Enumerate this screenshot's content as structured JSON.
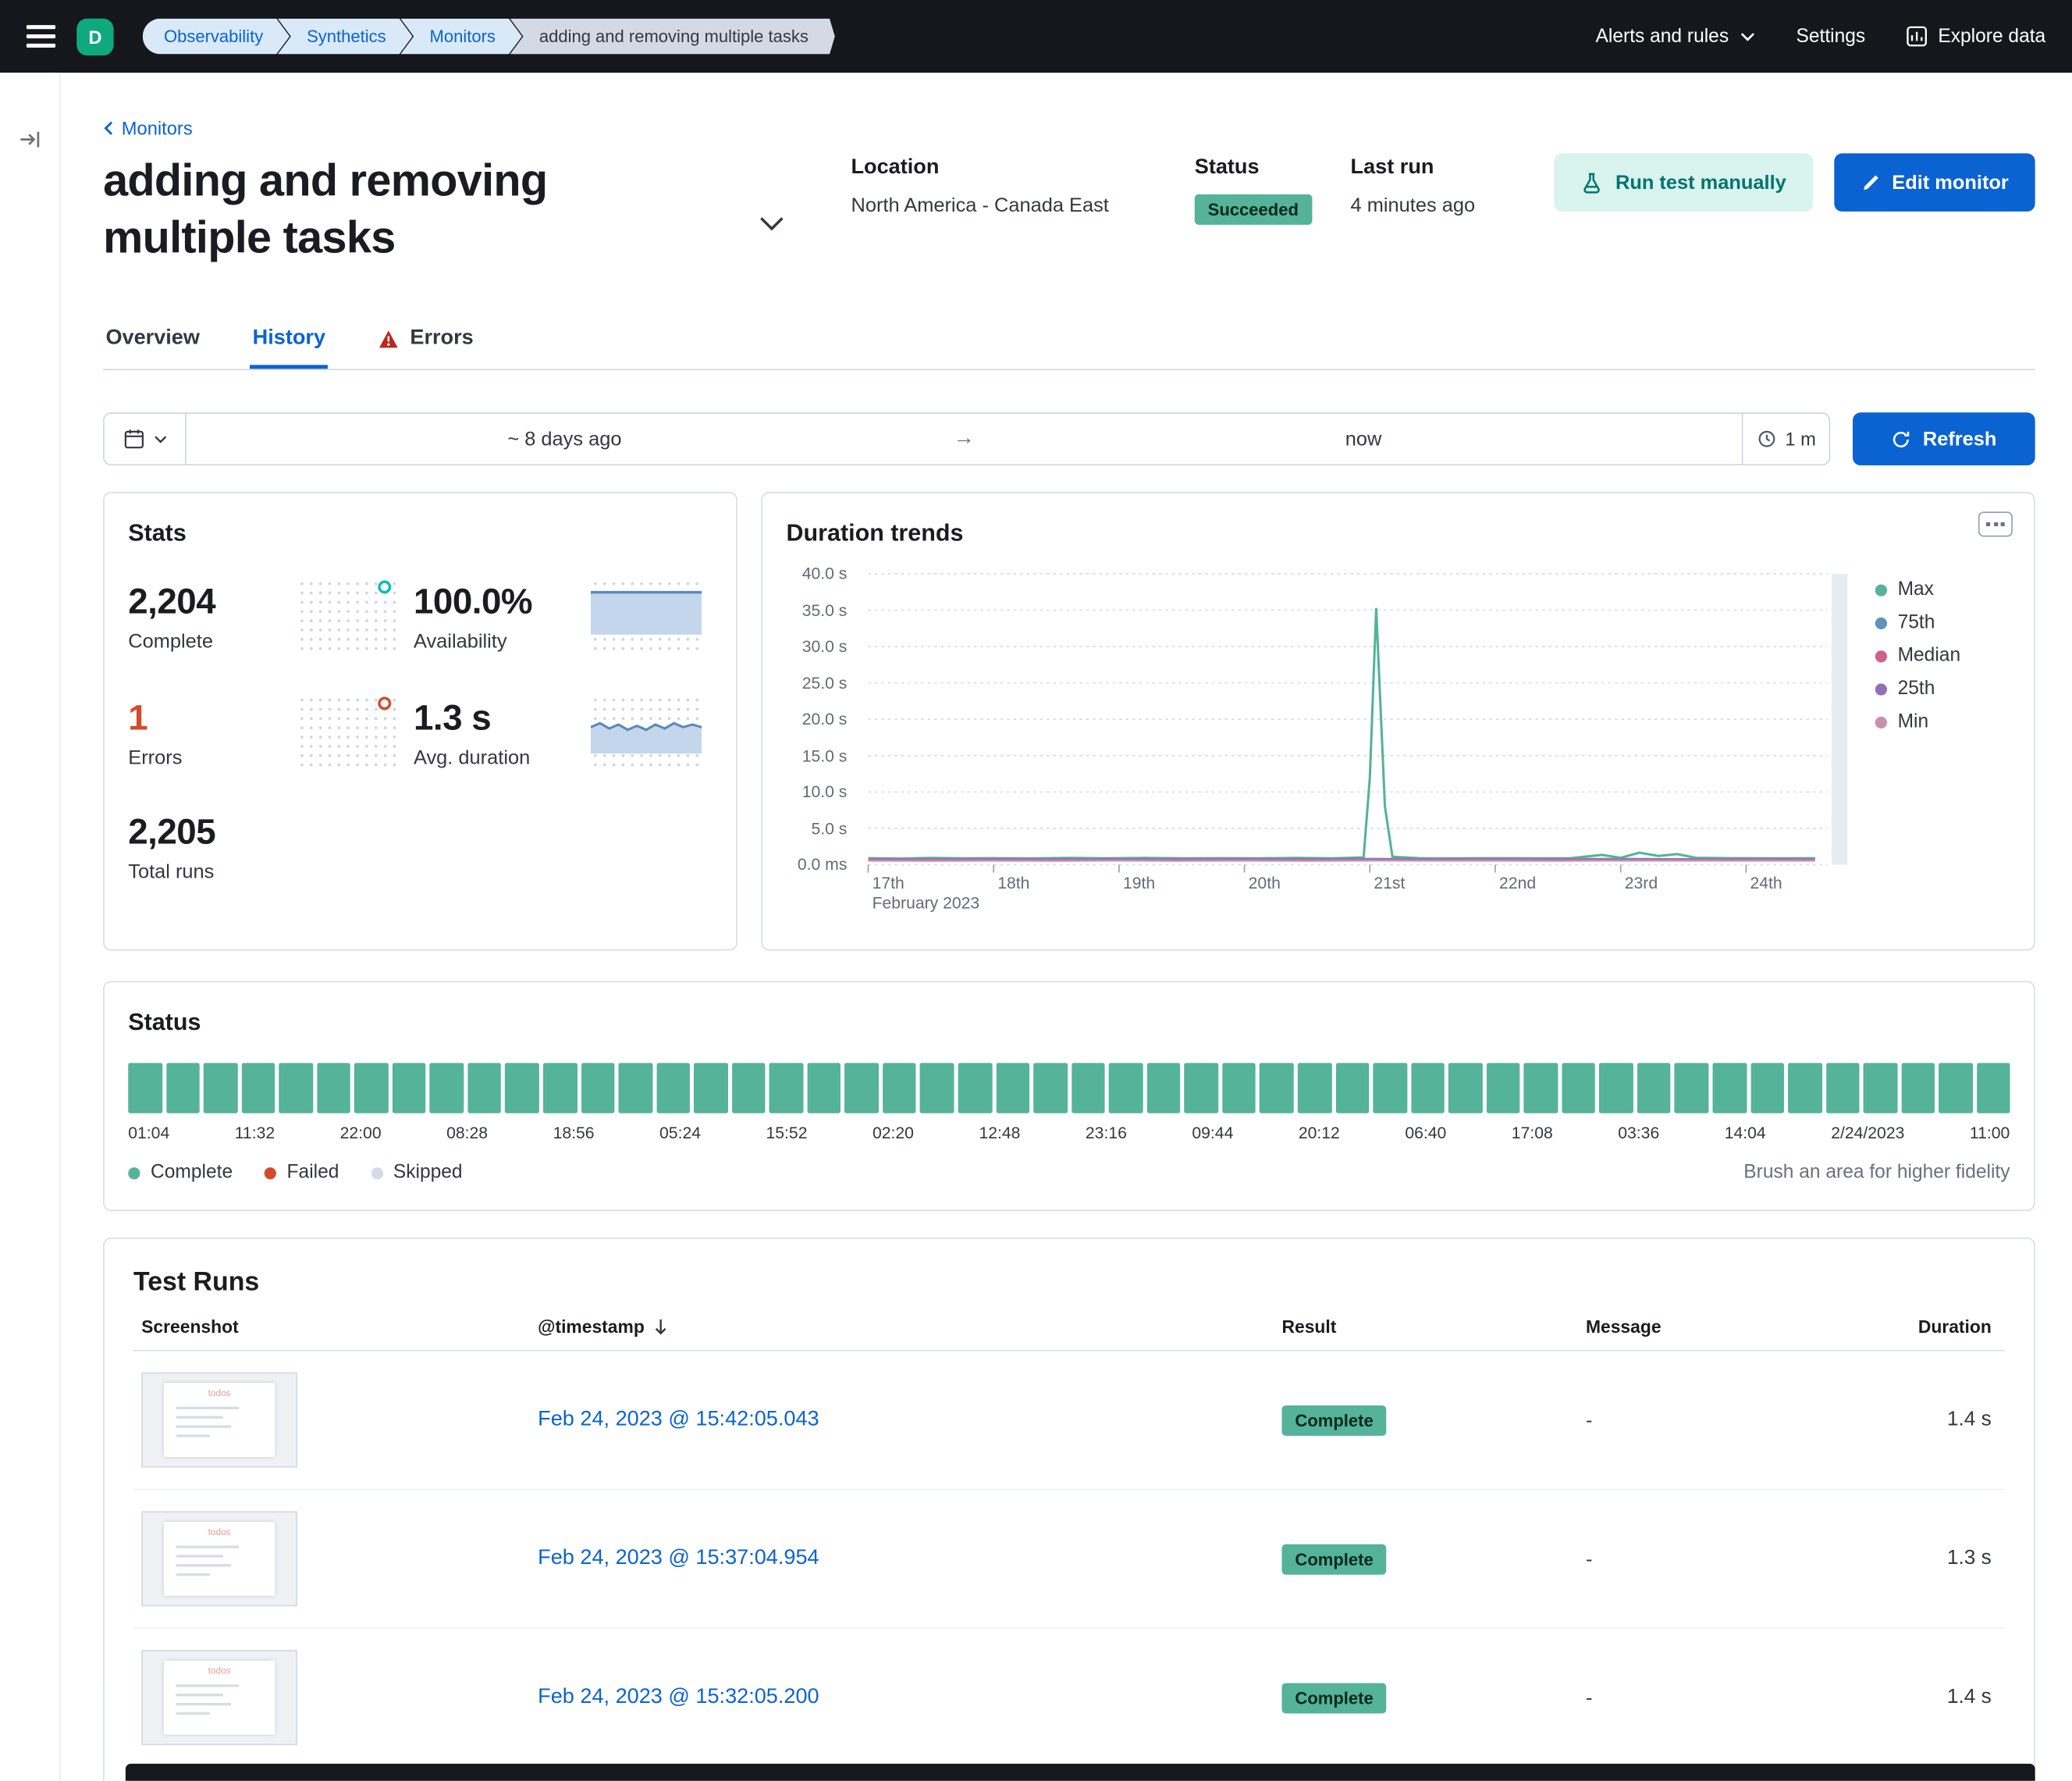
{
  "colors": {
    "accent": "#0B63D1",
    "success": "#54B399",
    "danger": "#D6492C",
    "teal": "#00BFB3"
  },
  "header": {
    "avatar": "D",
    "breadcrumbs": [
      {
        "label": "Observability"
      },
      {
        "label": "Synthetics"
      },
      {
        "label": "Monitors"
      },
      {
        "label": "adding and removing multiple tasks"
      }
    ],
    "nav": {
      "alerts": "Alerts and rules",
      "settings": "Settings",
      "explore": "Explore data"
    }
  },
  "monitor": {
    "back_link": "Monitors",
    "title": "adding and removing multiple tasks",
    "location_label": "Location",
    "location": "North America - Canada East",
    "status_label": "Status",
    "status": "Succeeded",
    "last_run_label": "Last run",
    "last_run": "4 minutes ago",
    "run_test_button": "Run test manually",
    "edit_button": "Edit monitor"
  },
  "tabs": [
    {
      "label": "Overview",
      "active": false
    },
    {
      "label": "History",
      "active": true
    },
    {
      "label": "Errors",
      "active": false,
      "icon": "warning"
    }
  ],
  "datepicker": {
    "start": "~ 8 days ago",
    "end": "now",
    "interval": "1 m",
    "refresh": "Refresh"
  },
  "stats": {
    "title": "Stats",
    "items": [
      {
        "value": "2,204",
        "label": "Complete"
      },
      {
        "value": "100.0%",
        "label": "Availability"
      },
      {
        "value": "1",
        "label": "Errors",
        "color": "#D6492C"
      },
      {
        "value": "1.3 s",
        "label": "Avg. duration"
      },
      {
        "value": "2,205",
        "label": "Total runs"
      }
    ]
  },
  "chart_data": {
    "type": "line",
    "title": "Duration trends",
    "y_ticks": [
      "40.0 s",
      "35.0 s",
      "30.0 s",
      "25.0 s",
      "20.0 s",
      "15.0 s",
      "10.0 s",
      "5.0 s",
      "0.0 ms"
    ],
    "ylim_seconds": [
      0,
      40
    ],
    "x_ticks": [
      "17th",
      "18th",
      "19th",
      "20th",
      "21st",
      "22nd",
      "23rd",
      "24th"
    ],
    "x_axis_secondary": "February 2023",
    "x_domain_days": [
      17,
      24.65
    ],
    "grid": "dashed",
    "legend_position": "right",
    "series": [
      {
        "name": "Max",
        "color": "#54B399",
        "points": [
          [
            17,
            0.9
          ],
          [
            17.25,
            0.84
          ],
          [
            17.5,
            0.92
          ],
          [
            17.75,
            0.88
          ],
          [
            18,
            0.9
          ],
          [
            18.3,
            0.86
          ],
          [
            18.6,
            0.92
          ],
          [
            18.9,
            0.88
          ],
          [
            19.2,
            0.93
          ],
          [
            19.5,
            0.88
          ],
          [
            19.8,
            0.9
          ],
          [
            20.1,
            0.87
          ],
          [
            20.4,
            0.92
          ],
          [
            20.7,
            0.88
          ],
          [
            20.95,
            1.0
          ],
          [
            21.0,
            12
          ],
          [
            21.05,
            35.3
          ],
          [
            21.12,
            8
          ],
          [
            21.18,
            1.1
          ],
          [
            21.4,
            0.9
          ],
          [
            21.7,
            0.88
          ],
          [
            22,
            0.9
          ],
          [
            22.3,
            0.87
          ],
          [
            22.6,
            0.9
          ],
          [
            22.85,
            1.35
          ],
          [
            23,
            0.95
          ],
          [
            23.15,
            1.65
          ],
          [
            23.3,
            1.2
          ],
          [
            23.45,
            1.45
          ],
          [
            23.6,
            0.95
          ],
          [
            23.9,
            0.9
          ],
          [
            24.2,
            0.88
          ],
          [
            24.55,
            0.9
          ]
        ]
      },
      {
        "name": "75th",
        "color": "#6092C0",
        "points": [
          [
            17,
            0.8
          ],
          [
            17.5,
            0.77
          ],
          [
            18,
            0.8
          ],
          [
            18.5,
            0.78
          ],
          [
            19,
            0.81
          ],
          [
            19.5,
            0.78
          ],
          [
            20,
            0.8
          ],
          [
            20.5,
            0.78
          ],
          [
            21,
            0.82
          ],
          [
            21.5,
            0.79
          ],
          [
            22,
            0.8
          ],
          [
            22.5,
            0.78
          ],
          [
            23,
            0.82
          ],
          [
            23.5,
            0.79
          ],
          [
            24,
            0.8
          ],
          [
            24.55,
            0.79
          ]
        ]
      },
      {
        "name": "Median",
        "color": "#D36086",
        "points": [
          [
            17,
            0.72
          ],
          [
            17.5,
            0.7
          ],
          [
            18,
            0.72
          ],
          [
            18.5,
            0.7
          ],
          [
            19,
            0.73
          ],
          [
            19.5,
            0.7
          ],
          [
            20,
            0.72
          ],
          [
            20.5,
            0.7
          ],
          [
            21,
            0.73
          ],
          [
            21.5,
            0.71
          ],
          [
            22,
            0.72
          ],
          [
            22.5,
            0.7
          ],
          [
            23,
            0.73
          ],
          [
            23.5,
            0.71
          ],
          [
            24,
            0.72
          ],
          [
            24.55,
            0.71
          ]
        ]
      },
      {
        "name": "25th",
        "color": "#9170B8",
        "points": [
          [
            17,
            0.64
          ],
          [
            17.5,
            0.62
          ],
          [
            18,
            0.64
          ],
          [
            18.5,
            0.62
          ],
          [
            19,
            0.65
          ],
          [
            19.5,
            0.62
          ],
          [
            20,
            0.64
          ],
          [
            20.5,
            0.62
          ],
          [
            21,
            0.65
          ],
          [
            21.5,
            0.63
          ],
          [
            22,
            0.64
          ],
          [
            22.5,
            0.62
          ],
          [
            23,
            0.65
          ],
          [
            23.5,
            0.63
          ],
          [
            24,
            0.64
          ],
          [
            24.55,
            0.63
          ]
        ]
      },
      {
        "name": "Min",
        "color": "#CA8EAE",
        "points": [
          [
            17,
            0.55
          ],
          [
            17.5,
            0.53
          ],
          [
            18,
            0.55
          ],
          [
            18.5,
            0.53
          ],
          [
            19,
            0.56
          ],
          [
            19.5,
            0.53
          ],
          [
            20,
            0.55
          ],
          [
            20.5,
            0.53
          ],
          [
            21,
            0.56
          ],
          [
            21.5,
            0.54
          ],
          [
            22,
            0.55
          ],
          [
            22.5,
            0.53
          ],
          [
            23,
            0.56
          ],
          [
            23.5,
            0.54
          ],
          [
            24,
            0.55
          ],
          [
            24.55,
            0.54
          ]
        ]
      }
    ]
  },
  "status_panel": {
    "title": "Status",
    "bar_count": 50,
    "bar_color": "#54B399",
    "timestamps": [
      "01:04",
      "11:32",
      "22:00",
      "08:28",
      "18:56",
      "05:24",
      "15:52",
      "02:20",
      "12:48",
      "23:16",
      "09:44",
      "20:12",
      "06:40",
      "17:08",
      "03:36",
      "14:04",
      "2/24/2023",
      "11:00"
    ],
    "legend": [
      {
        "label": "Complete",
        "color": "#54B399"
      },
      {
        "label": "Failed",
        "color": "#D6492C"
      },
      {
        "label": "Skipped",
        "color": "#D3DAE6"
      }
    ],
    "hint": "Brush an area for higher fidelity"
  },
  "test_runs": {
    "title": "Test Runs",
    "columns": [
      "Screenshot",
      "@timestamp",
      "Result",
      "Message",
      "Duration"
    ],
    "thumbnail_text": "todos",
    "rows": [
      {
        "timestamp": "Feb 24, 2023 @ 15:42:05.043",
        "result": "Complete",
        "message": "-",
        "duration": "1.4 s"
      },
      {
        "timestamp": "Feb 24, 2023 @ 15:37:04.954",
        "result": "Complete",
        "message": "-",
        "duration": "1.3 s"
      },
      {
        "timestamp": "Feb 24, 2023 @ 15:32:05.200",
        "result": "Complete",
        "message": "-",
        "duration": "1.4 s"
      }
    ]
  }
}
